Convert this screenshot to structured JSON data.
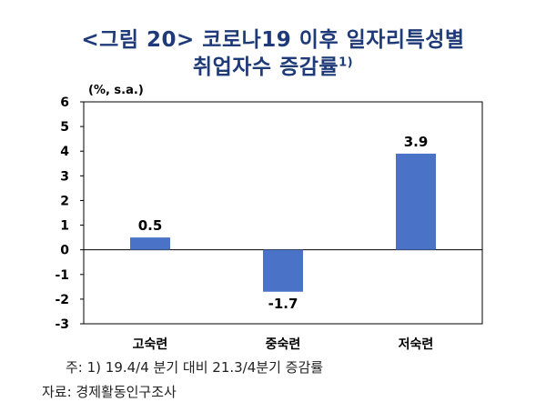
{
  "title": {
    "line1": "<그림 20> 코로나19 이후 일자리특성별",
    "line2": "취업자수 증감률",
    "footnote_mark": "1)"
  },
  "chart_data": {
    "type": "bar",
    "unit": "(%, s.a.)",
    "categories": [
      "고숙련",
      "중숙련",
      "저숙련"
    ],
    "values": [
      0.5,
      -1.7,
      3.9
    ],
    "value_labels": [
      "0.5",
      "-1.7",
      "3.9"
    ],
    "ylim": [
      -3,
      6
    ],
    "yticks": [
      "-3",
      "-2",
      "-1",
      "0",
      "1",
      "2",
      "3",
      "4",
      "5",
      "6"
    ],
    "bar_color": "#4a72c6",
    "grid": false,
    "legend": "none"
  },
  "notes": {
    "note1": "주: 1) 19.4/4 분기 대비 21.3/4분기 증감률",
    "note2": "자료: 경제활동인구조사"
  }
}
